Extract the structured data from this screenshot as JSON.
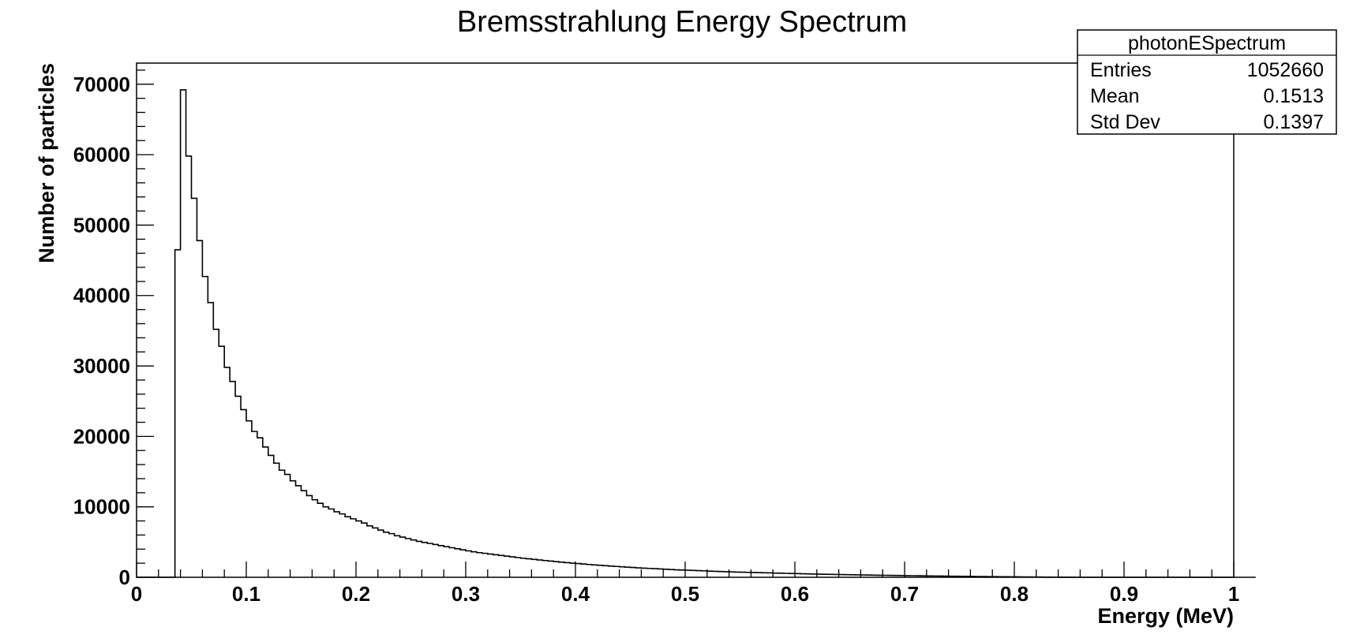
{
  "chart_data": {
    "type": "bar",
    "title": "Bremsstrahlung Energy Spectrum",
    "xlabel": "Energy (MeV)",
    "ylabel": "Number of particles",
    "xlim": [
      0,
      1
    ],
    "ylim": [
      0,
      73000
    ],
    "x_ticks": [
      "0",
      "0.1",
      "0.2",
      "0.3",
      "0.4",
      "0.5",
      "0.6",
      "0.7",
      "0.8",
      "0.9",
      "1"
    ],
    "y_ticks": [
      "0",
      "10000",
      "20000",
      "30000",
      "40000",
      "50000",
      "60000",
      "70000"
    ],
    "bin_width": 0.005,
    "x_start": 0.0,
    "values": [
      0,
      0,
      0,
      0,
      0,
      0,
      0,
      46500,
      69200,
      59800,
      53800,
      47800,
      42700,
      39000,
      35200,
      32800,
      29800,
      27800,
      25700,
      23800,
      22200,
      20700,
      19800,
      18500,
      17300,
      16200,
      15200,
      14600,
      13700,
      13000,
      12300,
      11600,
      11000,
      10500,
      10000,
      9700,
      9300,
      9000,
      8600,
      8300,
      8000,
      7700,
      7300,
      7000,
      6700,
      6400,
      6200,
      5900,
      5700,
      5500,
      5300,
      5100,
      4950,
      4800,
      4650,
      4500,
      4350,
      4200,
      4050,
      3900,
      3750,
      3620,
      3500,
      3400,
      3300,
      3200,
      3100,
      3000,
      2900,
      2800,
      2700,
      2620,
      2540,
      2460,
      2380,
      2300,
      2220,
      2150,
      2080,
      2010,
      1950,
      1880,
      1820,
      1760,
      1700,
      1640,
      1590,
      1540,
      1490,
      1440,
      1390,
      1340,
      1300,
      1260,
      1220,
      1180,
      1140,
      1100,
      1060,
      1030,
      1000,
      970,
      940,
      910,
      880,
      850,
      820,
      790,
      760,
      740,
      720,
      700,
      680,
      660,
      640,
      620,
      600,
      580,
      560,
      540,
      520,
      500,
      480,
      460,
      445,
      430,
      415,
      400,
      385,
      370,
      355,
      340,
      328,
      316,
      304,
      292,
      280,
      268,
      256,
      245,
      234,
      223,
      212,
      202,
      192,
      182,
      172,
      163,
      154,
      145,
      136,
      128,
      120,
      112,
      104,
      96,
      88,
      80,
      72,
      65,
      58,
      51,
      44,
      38,
      32,
      26,
      20,
      15,
      10,
      6,
      3,
      1,
      0,
      0,
      0,
      0,
      0,
      0,
      0,
      0,
      0,
      0,
      0,
      0,
      0,
      0,
      0,
      0,
      0,
      0,
      0,
      0,
      0,
      0,
      0,
      0,
      0,
      0,
      0,
      0,
      0,
      0,
      0,
      0
    ],
    "stats": {
      "name": "photonESpectrum",
      "rows": [
        {
          "label": "Entries",
          "value": "1052660"
        },
        {
          "label": "Mean",
          "value": "0.1513"
        },
        {
          "label": "Std Dev",
          "value": "0.1397"
        }
      ],
      "placement": "top-right"
    },
    "grid": false,
    "line_color": "#000000"
  }
}
